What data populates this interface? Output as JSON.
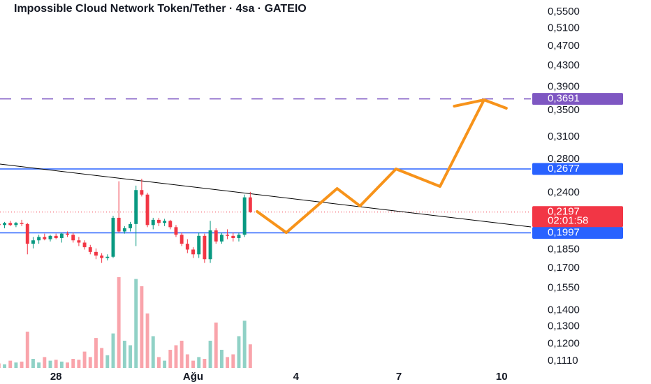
{
  "chart_data": {
    "type": "candlestick",
    "title": "Impossible Cloud Network Token/Tether · 4sa · GATEIO",
    "log_scale": true,
    "xlim": [
      0.2,
      93.1
    ],
    "ylim": [
      0.1065,
      0.5807
    ],
    "xticks": [
      {
        "value": 10,
        "label": "28"
      },
      {
        "value": 34,
        "label": "Ağu"
      },
      {
        "value": 52,
        "label": "4"
      },
      {
        "value": 70,
        "label": "7"
      },
      {
        "value": 88,
        "label": "10"
      }
    ],
    "yticks": [
      {
        "value": 0.55,
        "label": "0,5500"
      },
      {
        "value": 0.51,
        "label": "0,5100"
      },
      {
        "value": 0.47,
        "label": "0,4700"
      },
      {
        "value": 0.43,
        "label": "0,4300"
      },
      {
        "value": 0.39,
        "label": "0,3900"
      },
      {
        "value": 0.35,
        "label": "0,3500"
      },
      {
        "value": 0.31,
        "label": "0,3100"
      },
      {
        "value": 0.28,
        "label": "0,2800"
      },
      {
        "value": 0.24,
        "label": "0,2400"
      },
      {
        "value": 0.185,
        "label": "0,1850"
      },
      {
        "value": 0.17,
        "label": "0,1700"
      },
      {
        "value": 0.155,
        "label": "0,1550"
      },
      {
        "value": 0.14,
        "label": "0,1400"
      },
      {
        "value": 0.13,
        "label": "0,1300"
      },
      {
        "value": 0.12,
        "label": "0,1200"
      },
      {
        "value": 0.111,
        "label": "0,1110"
      }
    ],
    "up_color": "#089981",
    "down_color": "#f23645",
    "x": [
      0,
      1,
      2,
      3,
      4,
      5,
      6,
      7,
      8,
      9,
      10,
      11,
      12,
      13,
      14,
      15,
      16,
      17,
      18,
      19,
      20,
      21,
      22,
      23,
      24,
      25,
      26,
      27,
      28,
      29,
      30,
      31,
      32,
      33,
      34,
      35,
      36,
      37,
      38,
      39,
      40,
      41,
      42,
      43,
      44
    ],
    "open": [
      0.208,
      0.207,
      0.209,
      0.207,
      0.209,
      0.208,
      0.19,
      0.193,
      0.196,
      0.194,
      0.197,
      0.195,
      0.199,
      0.198,
      0.193,
      0.191,
      0.187,
      0.183,
      0.18,
      0.178,
      0.179,
      0.214,
      0.201,
      0.204,
      0.208,
      0.243,
      0.238,
      0.207,
      0.212,
      0.209,
      0.211,
      0.205,
      0.198,
      0.19,
      0.185,
      0.181,
      0.197,
      0.177,
      0.202,
      0.192,
      0.198,
      0.197,
      0.195,
      0.198,
      0.235
    ],
    "high": [
      0.211,
      0.21,
      0.211,
      0.21,
      0.212,
      0.209,
      0.196,
      0.198,
      0.199,
      0.198,
      0.199,
      0.2,
      0.201,
      0.2,
      0.196,
      0.193,
      0.189,
      0.186,
      0.182,
      0.181,
      0.216,
      0.253,
      0.206,
      0.21,
      0.248,
      0.256,
      0.24,
      0.214,
      0.214,
      0.213,
      0.212,
      0.207,
      0.2,
      0.194,
      0.187,
      0.2,
      0.199,
      0.211,
      0.204,
      0.2,
      0.203,
      0.2,
      0.2,
      0.238,
      0.241
    ],
    "low": [
      0.205,
      0.204,
      0.206,
      0.205,
      0.206,
      0.181,
      0.186,
      0.19,
      0.193,
      0.192,
      0.194,
      0.191,
      0.196,
      0.191,
      0.188,
      0.185,
      0.181,
      0.177,
      0.174,
      0.176,
      0.178,
      0.2,
      0.199,
      0.201,
      0.188,
      0.236,
      0.205,
      0.203,
      0.206,
      0.206,
      0.203,
      0.196,
      0.188,
      0.182,
      0.178,
      0.178,
      0.174,
      0.174,
      0.19,
      0.19,
      0.194,
      0.192,
      0.192,
      0.196,
      0.219
    ],
    "close": [
      0.207,
      0.209,
      0.207,
      0.209,
      0.208,
      0.19,
      0.193,
      0.196,
      0.194,
      0.197,
      0.195,
      0.199,
      0.198,
      0.193,
      0.191,
      0.187,
      0.183,
      0.18,
      0.178,
      0.179,
      0.214,
      0.201,
      0.204,
      0.208,
      0.243,
      0.238,
      0.207,
      0.212,
      0.209,
      0.211,
      0.205,
      0.198,
      0.19,
      0.185,
      0.181,
      0.197,
      0.177,
      0.202,
      0.192,
      0.198,
      0.197,
      0.195,
      0.198,
      0.235,
      0.2197
    ],
    "volume": [
      5,
      4,
      8,
      6,
      7,
      40,
      10,
      6,
      12,
      8,
      9,
      7,
      6,
      10,
      9,
      18,
      12,
      33,
      22,
      14,
      38,
      100,
      30,
      25,
      98,
      90,
      60,
      35,
      12,
      8,
      20,
      25,
      30,
      15,
      8,
      12,
      10,
      30,
      50,
      20,
      12,
      15,
      35,
      52,
      26
    ],
    "vlim": [
      0,
      100
    ],
    "levels": [
      {
        "value": 0.3691,
        "label": "0,3691",
        "color": "#7e57c2",
        "style": "dashed"
      },
      {
        "value": 0.2677,
        "label": "0,2677",
        "color": "#2962ff",
        "style": "solid"
      },
      {
        "value": 0.1997,
        "label": "0,1997",
        "color": "#2962ff",
        "style": "solid"
      }
    ],
    "last_price": {
      "value": 0.2197,
      "label": "0,2197",
      "countdown": "02:01:58",
      "color": "#f23645"
    },
    "trendline": {
      "x": [
        0.2,
        93.1
      ],
      "values": [
        0.2737,
        0.2052
      ],
      "color": "#000000"
    },
    "projection": {
      "x": [
        45.2,
        50.3,
        59.2,
        63.2,
        69.5,
        77.2,
        84.9
      ],
      "values": [
        0.2202,
        0.2,
        0.2447,
        0.2259,
        0.2677,
        0.2471,
        0.3674
      ],
      "color": "#f7931a"
    },
    "arrow": {
      "x": [
        79.7,
        84.9,
        88.8
      ],
      "values": [
        0.357,
        0.3674,
        0.3536
      ],
      "color": "#f7931a"
    }
  }
}
